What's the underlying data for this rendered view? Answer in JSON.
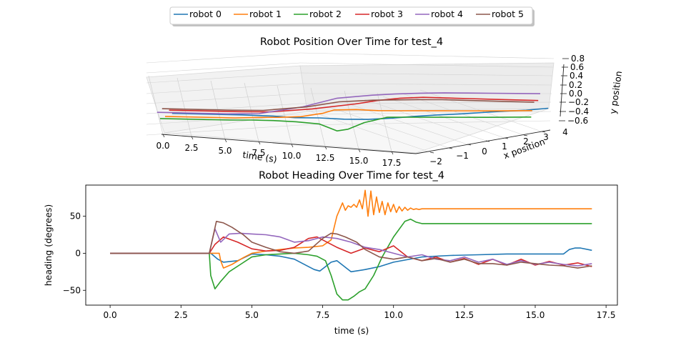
{
  "legend": {
    "location": "top-center",
    "items": [
      {
        "label": "robot 0",
        "color": "#1f77b4"
      },
      {
        "label": "robot 1",
        "color": "#ff7f0e"
      },
      {
        "label": "robot 2",
        "color": "#2ca02c"
      },
      {
        "label": "robot 3",
        "color": "#d62728"
      },
      {
        "label": "robot 4",
        "color": "#9467bd"
      },
      {
        "label": "robot 5",
        "color": "#8c564b"
      }
    ]
  },
  "chart_data": [
    {
      "type": "line3d",
      "title": "Robot Position Over Time for test_4",
      "xlabel": "time (s)",
      "ylabel": "x position",
      "zlabel": "y position",
      "time_ticks": [
        "0.0",
        "2.5",
        "5.0",
        "7.5",
        "10.0",
        "12.5",
        "15.0",
        "17.5"
      ],
      "x_ticks": [
        "−2",
        "−1",
        "0",
        "1",
        "2",
        "3",
        "4"
      ],
      "y_ticks": [
        "−0.6",
        "−0.4",
        "−0.2",
        "0.0",
        "0.2",
        "0.4",
        "0.6",
        "0.8"
      ],
      "time_range": [
        0,
        17.5
      ],
      "x_range": [
        -2,
        4
      ],
      "y_range": [
        -0.6,
        0.8
      ],
      "grid": true,
      "series": [
        {
          "name": "robot 0",
          "color": "#1f77b4",
          "t": [
            0,
            3.5,
            5,
            6,
            7,
            8,
            9,
            10,
            11,
            12,
            13,
            14,
            15,
            16,
            17
          ],
          "x": [
            -0.3,
            -0.3,
            -0.2,
            0.0,
            0.4,
            0.9,
            1.3,
            1.7,
            2.0,
            2.3,
            2.5,
            2.7,
            2.9,
            3.1,
            3.3
          ],
          "y": [
            0.05,
            0.05,
            0.02,
            -0.05,
            -0.1,
            -0.2,
            -0.25,
            -0.25,
            -0.22,
            -0.2,
            -0.18,
            -0.15,
            -0.12,
            -0.1,
            -0.05
          ]
        },
        {
          "name": "robot 1",
          "color": "#ff7f0e",
          "t": [
            0,
            3.5,
            4.5,
            5.5,
            6.5,
            7.5,
            8,
            9,
            10,
            11,
            13,
            15,
            17
          ],
          "x": [
            -1.0,
            -1.0,
            -0.8,
            -0.6,
            -0.4,
            -0.2,
            -0.1,
            0.1,
            0.3,
            0.5,
            0.9,
            1.3,
            1.7
          ],
          "y": [
            0.05,
            0.05,
            0.05,
            0.04,
            0.05,
            0.15,
            0.25,
            0.25,
            0.2,
            0.18,
            0.15,
            0.12,
            0.1
          ]
        },
        {
          "name": "robot 2",
          "color": "#2ca02c",
          "t": [
            0,
            3.5,
            4.5,
            5.5,
            6.5,
            7.5,
            8,
            8.3,
            8.8,
            9.5,
            10.5,
            11,
            13,
            15,
            17
          ],
          "x": [
            -1.5,
            -1.5,
            -1.4,
            -1.2,
            -0.9,
            -0.6,
            -0.5,
            -0.4,
            -0.3,
            -0.1,
            0.2,
            0.4,
            0.8,
            1.2,
            1.6
          ],
          "y": [
            0.05,
            0.05,
            0.05,
            0.02,
            -0.05,
            -0.15,
            -0.3,
            -0.4,
            -0.35,
            -0.15,
            0.0,
            -0.02,
            -0.05,
            -0.08,
            -0.1
          ]
        },
        {
          "name": "robot 3",
          "color": "#d62728",
          "t": [
            0,
            3.5,
            5,
            7,
            9,
            10,
            11,
            12,
            13,
            14,
            15,
            16,
            17
          ],
          "x": [
            -0.6,
            -0.6,
            -0.5,
            -0.3,
            0.0,
            0.2,
            0.5,
            0.8,
            1.1,
            1.4,
            1.7,
            2.0,
            2.3
          ],
          "y": [
            0.2,
            0.2,
            0.2,
            0.3,
            0.45,
            0.55,
            0.6,
            0.6,
            0.55,
            0.5,
            0.45,
            0.4,
            0.35
          ]
        },
        {
          "name": "robot 4",
          "color": "#9467bd",
          "t": [
            0,
            3.5,
            5,
            7,
            8.5,
            10,
            11,
            12,
            13,
            14,
            15,
            16,
            17
          ],
          "x": [
            -1.8,
            -1.8,
            -1.6,
            -1.2,
            -0.8,
            -0.3,
            0.1,
            0.5,
            0.9,
            1.3,
            1.7,
            2.1,
            2.5
          ],
          "y": [
            0.3,
            0.3,
            0.3,
            0.5,
            0.75,
            0.8,
            0.8,
            0.78,
            0.75,
            0.7,
            0.65,
            0.6,
            0.55
          ]
        },
        {
          "name": "robot 5",
          "color": "#8c564b",
          "t": [
            0,
            3.5,
            5,
            7,
            8.5,
            10,
            11,
            12,
            13,
            14,
            15,
            16,
            17
          ],
          "x": [
            -1.3,
            -1.3,
            -1.2,
            -0.9,
            -0.6,
            -0.2,
            0.1,
            0.4,
            0.7,
            1.0,
            1.3,
            1.6,
            1.9
          ],
          "y": [
            0.35,
            0.35,
            0.35,
            0.45,
            0.6,
            0.62,
            0.6,
            0.58,
            0.55,
            0.5,
            0.45,
            0.4,
            0.35
          ]
        }
      ]
    },
    {
      "type": "line",
      "title": "Robot Heading Over Time for test_4",
      "xlabel": "time (s)",
      "ylabel": "heading (degrees)",
      "xlim": [
        -0.86,
        17.9
      ],
      "ylim": [
        -70,
        92
      ],
      "x_ticks": [
        "0.0",
        "2.5",
        "5.0",
        "7.5",
        "10.0",
        "12.5",
        "15.0",
        "17.5"
      ],
      "y_ticks": [
        "−50",
        "0",
        "50"
      ],
      "grid": false,
      "series": [
        {
          "name": "robot 0",
          "color": "#1f77b4",
          "x": [
            0,
            3.55,
            3.8,
            4.0,
            4.5,
            5.0,
            5.5,
            6.0,
            6.5,
            7.0,
            7.2,
            7.4,
            7.6,
            7.8,
            8.0,
            8.5,
            9.0,
            9.5,
            10.0,
            11.0,
            12.0,
            13.0,
            14.0,
            15.0,
            16.0,
            16.2,
            16.4,
            16.6,
            17.0
          ],
          "y": [
            0,
            0,
            -8,
            -12,
            -10,
            -1,
            -2,
            -4,
            -8,
            -18,
            -22,
            -24,
            -18,
            -12,
            -10,
            -25,
            -22,
            -18,
            -12,
            -5,
            -3,
            -2,
            -1,
            -1,
            -1,
            5,
            7,
            7,
            4
          ]
        },
        {
          "name": "robot 1",
          "color": "#ff7f0e",
          "x": [
            0,
            3.8,
            3.85,
            3.9,
            4.0,
            4.3,
            4.7,
            5.0,
            5.5,
            6.0,
            6.5,
            7.0,
            7.5,
            7.8,
            8.0,
            8.2,
            8.3,
            8.4,
            8.5,
            8.6,
            8.7,
            8.8,
            8.9,
            9.0,
            9.1,
            9.2,
            9.3,
            9.4,
            9.5,
            9.6,
            9.7,
            9.8,
            9.9,
            10.0,
            10.1,
            10.2,
            10.3,
            10.4,
            10.5,
            10.6,
            10.7,
            10.8,
            10.9,
            11.0,
            17.0
          ],
          "y": [
            0,
            0,
            0,
            -10,
            -20,
            -15,
            -6,
            0,
            3,
            5,
            7,
            8,
            10,
            18,
            50,
            68,
            58,
            64,
            62,
            66,
            62,
            72,
            60,
            85,
            50,
            84,
            52,
            76,
            55,
            70,
            52,
            68,
            56,
            66,
            55,
            63,
            57,
            62,
            58,
            61,
            59,
            60,
            59,
            60,
            60
          ]
        },
        {
          "name": "robot 2",
          "color": "#2ca02c",
          "x": [
            0,
            3.5,
            3.55,
            3.7,
            3.9,
            4.2,
            4.6,
            5.0,
            5.5,
            6.0,
            6.5,
            7.0,
            7.3,
            7.6,
            7.8,
            8.0,
            8.2,
            8.4,
            8.6,
            8.8,
            9.0,
            9.3,
            9.6,
            10.0,
            10.4,
            10.6,
            10.8,
            11.0,
            17.0
          ],
          "y": [
            0,
            0,
            -30,
            -48,
            -38,
            -25,
            -15,
            -5,
            -2,
            -1,
            0,
            -2,
            -4,
            -10,
            -30,
            -55,
            -63,
            -63,
            -58,
            -52,
            -48,
            -30,
            -5,
            22,
            43,
            46,
            42,
            40,
            40
          ]
        },
        {
          "name": "robot 3",
          "color": "#d62728",
          "x": [
            0,
            3.5,
            3.7,
            4.0,
            4.5,
            5.0,
            5.5,
            6.0,
            6.5,
            7.0,
            7.3,
            7.6,
            8.0,
            8.5,
            9.0,
            9.5,
            10.0,
            10.5,
            11.0,
            11.5,
            12.0,
            12.5,
            13.0,
            13.5,
            14.0,
            14.5,
            15.0,
            15.5,
            16.0,
            16.5,
            17.0
          ],
          "y": [
            0,
            0,
            12,
            22,
            15,
            6,
            3,
            4,
            8,
            20,
            22,
            16,
            8,
            0,
            7,
            2,
            10,
            -5,
            -10,
            -5,
            -12,
            -7,
            -15,
            -8,
            -16,
            -8,
            -16,
            -11,
            -16,
            -13,
            -18
          ]
        },
        {
          "name": "robot 4",
          "color": "#9467bd",
          "x": [
            0,
            3.5,
            3.7,
            3.9,
            4.2,
            4.6,
            5.0,
            5.5,
            6.0,
            6.5,
            7.0,
            7.5,
            8.0,
            8.5,
            9.0,
            9.5,
            10.0,
            10.5,
            11.0,
            11.5,
            12.0,
            12.5,
            13.0,
            13.5,
            14.0,
            14.5,
            15.0,
            15.5,
            16.0,
            16.5,
            17.0
          ],
          "y": [
            0,
            0,
            33,
            15,
            26,
            27,
            26,
            25,
            22,
            15,
            17,
            22,
            20,
            15,
            8,
            5,
            0,
            -5,
            -2,
            -8,
            -10,
            -5,
            -12,
            -8,
            -15,
            -10,
            -15,
            -12,
            -15,
            -17,
            -14
          ]
        },
        {
          "name": "robot 5",
          "color": "#8c564b",
          "x": [
            0,
            3.5,
            3.75,
            4.0,
            4.3,
            4.7,
            5.0,
            5.5,
            6.0,
            6.5,
            7.0,
            7.5,
            7.8,
            8.0,
            8.3,
            8.7,
            9.0,
            9.5,
            10.0,
            10.5,
            11.0,
            11.5,
            12.0,
            12.5,
            13.0,
            13.5,
            14.0,
            14.5,
            15.0,
            15.5,
            16.0,
            16.5,
            17.0
          ],
          "y": [
            0,
            0,
            43,
            41,
            35,
            25,
            15,
            8,
            2,
            0,
            3,
            20,
            27,
            26,
            22,
            15,
            5,
            -5,
            -8,
            -5,
            -10,
            -7,
            -12,
            -8,
            -14,
            -14,
            -16,
            -12,
            -14,
            -16,
            -17,
            -20,
            -17
          ]
        }
      ]
    }
  ]
}
